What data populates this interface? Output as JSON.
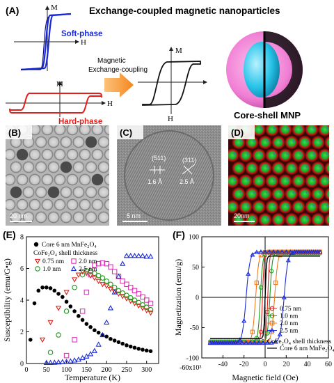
{
  "panelA": {
    "label": "(A)",
    "title": "Exchange-coupled magnetic nanoparticles",
    "soft_label": "Soft-phase",
    "hard_label": "Hard-phase",
    "axis_m": "M",
    "axis_h": "H",
    "arrow_line1": "Magnetic",
    "arrow_line2": "Exchange-coupling",
    "core_shell_label": "Core-shell MNP",
    "colors": {
      "soft": "#1a2bd6",
      "hard": "#e0201a",
      "arrow": "#f5942a",
      "shell": "#f07fd4",
      "core": "#27c3e8"
    }
  },
  "panelB": {
    "label": "(B)",
    "scale": "20 nm"
  },
  "panelC": {
    "label": "(C)",
    "scale": "5 nm",
    "plane1": "(511)",
    "plane2": "(311)",
    "d1": "1.6 Å",
    "d2": "2.5 Å"
  },
  "panelD": {
    "label": "(D)",
    "scale": "20nm"
  },
  "chart_data": [
    {
      "type": "scatter",
      "panel": "(E)",
      "xlabel": "Temperature (K)",
      "ylabel": "Susceptibility (emu/G•g)",
      "xlim": [
        0,
        330
      ],
      "ylim": [
        0,
        8
      ],
      "xticks": [
        "0",
        "50",
        "100",
        "150",
        "200",
        "250",
        "300"
      ],
      "yticks": [
        "0",
        "2",
        "4",
        "6",
        "8"
      ],
      "legend_core": "Core 6 nm MnFe₂O₄",
      "legend_shell_heading": "CoFe₂O₄ shell thickness",
      "series": [
        {
          "name": "Core 6 nm MnFe₂O₄",
          "color": "#000000",
          "marker": "filled-circle",
          "x": [
            10,
            20,
            30,
            40,
            50,
            60,
            70,
            80,
            90,
            100,
            110,
            120,
            130,
            140,
            150,
            160,
            170,
            180,
            190,
            200,
            210,
            220,
            230,
            240,
            250,
            260,
            270,
            280,
            290,
            300,
            310
          ],
          "y": [
            1.5,
            3.8,
            4.6,
            4.8,
            4.8,
            4.75,
            4.6,
            4.4,
            4.2,
            3.9,
            3.6,
            3.3,
            3.0,
            2.75,
            2.5,
            2.3,
            2.1,
            1.95,
            1.8,
            1.7,
            1.55,
            1.45,
            1.35,
            1.25,
            1.15,
            1.07,
            1.0,
            0.93,
            0.87,
            0.82,
            0.78
          ]
        },
        {
          "name": "0.75 nm",
          "color": "#e0201a",
          "marker": "triangle-down",
          "x": [
            40,
            60,
            80,
            100,
            120,
            130,
            140,
            150,
            160,
            170,
            180,
            190,
            200,
            210,
            220,
            230,
            240,
            250,
            260,
            270,
            280,
            290,
            300,
            310
          ],
          "y": [
            1.5,
            2.6,
            3.5,
            4.5,
            5.3,
            5.6,
            5.8,
            5.7,
            5.55,
            5.4,
            5.2,
            5.0,
            4.9,
            4.7,
            4.55,
            4.4,
            4.25,
            4.1,
            3.95,
            3.8,
            3.65,
            3.5,
            3.35,
            3.2
          ]
        },
        {
          "name": "1.0 nm",
          "color": "#1a9a1a",
          "marker": "open-circle",
          "x": [
            60,
            80,
            100,
            120,
            140,
            150,
            160,
            170,
            180,
            190,
            200,
            210,
            220,
            230,
            240,
            250,
            260,
            270,
            280,
            290,
            300,
            310
          ],
          "y": [
            0.7,
            1.8,
            3.3,
            4.8,
            5.6,
            5.85,
            5.85,
            5.7,
            5.55,
            5.4,
            5.2,
            5.0,
            4.8,
            4.6,
            4.45,
            4.3,
            4.15,
            4.0,
            3.85,
            3.7,
            3.55,
            3.4
          ]
        },
        {
          "name": "2.0 nm",
          "color": "#e033b8",
          "marker": "open-square",
          "x": [
            100,
            120,
            140,
            150,
            160,
            170,
            180,
            190,
            200,
            210,
            220,
            230,
            240,
            250,
            260,
            270,
            280,
            290,
            300,
            310
          ],
          "y": [
            0.5,
            1.5,
            3.3,
            4.5,
            5.6,
            6.2,
            6.3,
            6.35,
            6.3,
            6.1,
            5.8,
            5.5,
            5.2,
            5.0,
            4.8,
            4.6,
            4.4,
            4.2,
            4.0,
            3.8
          ]
        },
        {
          "name": "2.5 nm",
          "color": "#1a2bd6",
          "marker": "triangle-up",
          "x": [
            50,
            60,
            70,
            80,
            90,
            100,
            110,
            120,
            130,
            140,
            150,
            160,
            170,
            180,
            190,
            200,
            210,
            220,
            230,
            240,
            250,
            260,
            270,
            280,
            290,
            300,
            310
          ],
          "y": [
            0.05,
            0.05,
            0.06,
            0.08,
            0.1,
            0.12,
            0.15,
            0.2,
            0.25,
            0.35,
            0.45,
            0.6,
            0.8,
            1.2,
            1.8,
            2.6,
            3.5,
            4.5,
            5.5,
            6.3,
            6.8,
            6.8,
            6.8,
            6.8,
            6.8,
            6.75,
            6.75
          ]
        }
      ]
    },
    {
      "type": "line",
      "panel": "(F)",
      "xlabel": "Magnetic field (Oe)",
      "ylabel": "Magnetization (emu/g)",
      "xlim": [
        -60000,
        60000
      ],
      "ylim": [
        -100,
        100
      ],
      "xticks": [
        "-40",
        "-20",
        "0",
        "20",
        "40",
        "60"
      ],
      "x_multiplier_label": "-60x10³",
      "yticks": [
        "-100",
        "-50",
        "0",
        "50",
        "100"
      ],
      "legend_shell_heading": "CoFe₂O₄ shell thickness",
      "legend_core": "Core 6 nm MnFe₂O₄",
      "series": [
        {
          "name": "0.75 nm",
          "color": "#e0201a",
          "marker": "open-circle",
          "ms": 75,
          "hc": 2500,
          "w": 1500
        },
        {
          "name": "1.0 nm",
          "color": "#1a9a1a",
          "marker": "open-circle",
          "ms": 73,
          "hc": 4500,
          "w": 2200
        },
        {
          "name": "2.0 nm",
          "color": "#f07a1a",
          "marker": "open-square",
          "ms": 75,
          "hc": 9000,
          "w": 3000
        },
        {
          "name": "2.5 nm",
          "color": "#1a2bd6",
          "marker": "triangle-up",
          "ms": 75,
          "hc": 18000,
          "w": 3500
        },
        {
          "name": "Core 6 nm MnFe₂O₄",
          "color": "#000000",
          "marker": "line",
          "ms": 68,
          "hc": 0,
          "w": 1200
        }
      ]
    }
  ]
}
